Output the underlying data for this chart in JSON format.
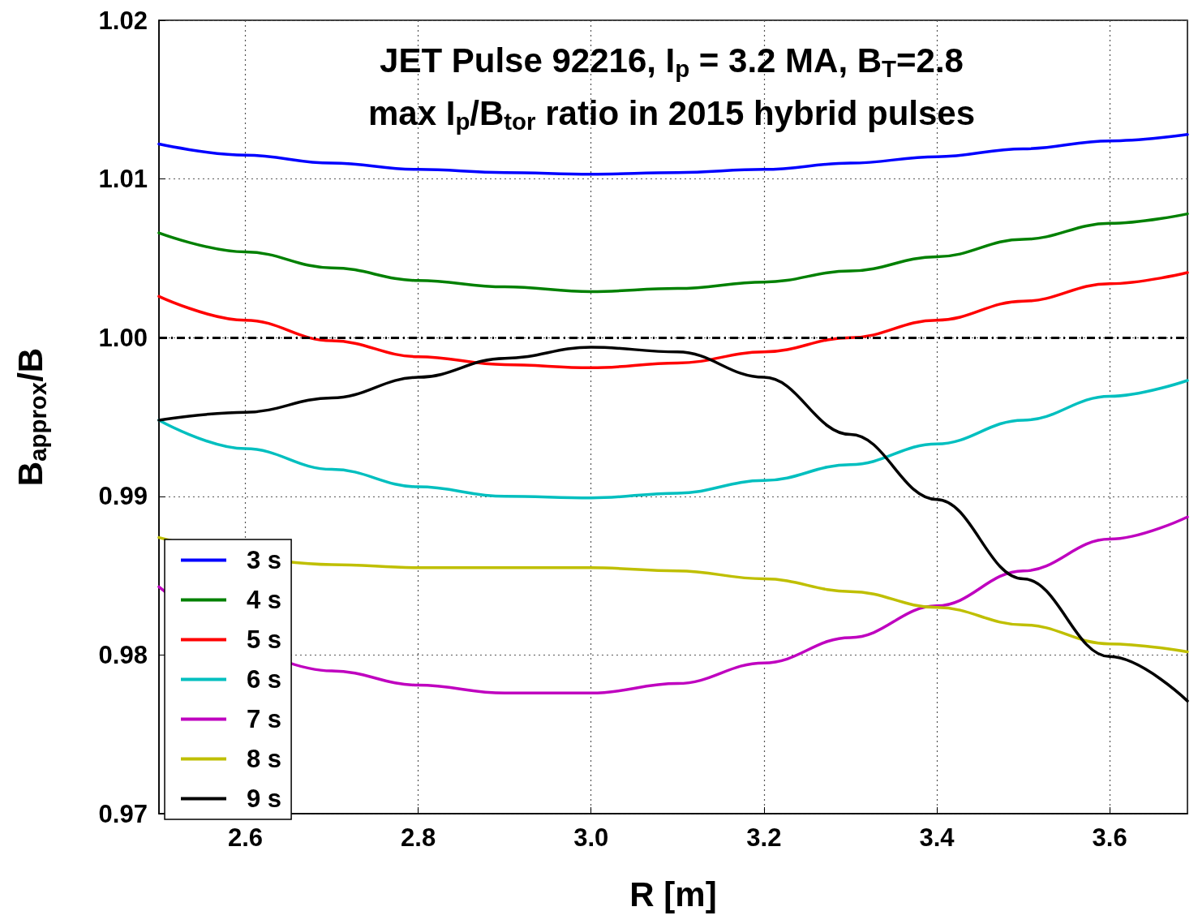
{
  "chart_data": {
    "type": "line",
    "title": "JET Pulse 92216, I$_{p}$ = 3.2 MA, B$_{T}$=2.8",
    "subtitle": "max I$_{p}$/B$_{tor}$ ratio in 2015 hybrid pulses",
    "xlabel": "R [m]",
    "ylabel": "B$_{approx}$/B",
    "x": [
      2.5,
      2.6,
      2.7,
      2.8,
      2.9,
      3.0,
      3.1,
      3.2,
      3.3,
      3.4,
      3.5,
      3.6,
      3.69
    ],
    "series": [
      {
        "name": "3 s",
        "color": "#0000ff",
        "values": [
          1.0122,
          1.0115,
          1.011,
          1.0106,
          1.0104,
          1.0103,
          1.0104,
          1.0106,
          1.011,
          1.0114,
          1.0119,
          1.0124,
          1.0128
        ]
      },
      {
        "name": "4 s",
        "color": "#008000",
        "values": [
          1.0066,
          1.0054,
          1.0044,
          1.0036,
          1.0032,
          1.0029,
          1.0031,
          1.0035,
          1.0042,
          1.0051,
          1.0062,
          1.0072,
          1.0078
        ]
      },
      {
        "name": "5 s",
        "color": "#ff0000",
        "values": [
          1.0026,
          1.0011,
          0.9998,
          0.9988,
          0.9983,
          0.9981,
          0.9984,
          0.9991,
          1.0,
          1.0011,
          1.0023,
          1.0034,
          1.0041
        ]
      },
      {
        "name": "6 s",
        "color": "#00bfbf",
        "values": [
          0.9948,
          0.993,
          0.9917,
          0.9906,
          0.99,
          0.9899,
          0.9902,
          0.991,
          0.992,
          0.9933,
          0.9948,
          0.9963,
          0.9973
        ]
      },
      {
        "name": "7 s",
        "color": "#bf00bf",
        "values": [
          0.9843,
          null,
          0.979,
          0.9781,
          0.9776,
          0.9776,
          0.9782,
          0.9795,
          0.9811,
          0.9831,
          0.9853,
          0.9873,
          0.9887
        ]
      },
      {
        "name": "8 s",
        "color": "#bfbf00",
        "values": [
          0.9874,
          null,
          0.9857,
          0.9855,
          0.9855,
          0.9855,
          0.9853,
          0.9848,
          0.984,
          0.983,
          0.9819,
          0.9807,
          0.9802
        ]
      },
      {
        "name": "9 s",
        "color": "#000000",
        "values": [
          0.9948,
          0.9953,
          0.9962,
          0.9975,
          0.9987,
          0.9994,
          0.9991,
          0.9975,
          0.9939,
          0.9898,
          0.9848,
          0.9799,
          0.9771
        ]
      }
    ],
    "xlim": [
      2.5,
      3.69
    ],
    "xticks": [
      2.6,
      2.8,
      {
        "value": 3,
        "label": "3.0"
      },
      3.2,
      3.4,
      3.6
    ],
    "ylim": [
      0.97,
      1.02
    ],
    "yticks": [
      0.97,
      0.98,
      0.99,
      {
        "value": 1,
        "label": "1.00"
      },
      1.01,
      1.02
    ],
    "ref_lines": [
      {
        "axis": "y",
        "value": 1,
        "color": "#000000",
        "line_style": "dashed"
      }
    ],
    "grid": true,
    "legend": "bottom left"
  }
}
